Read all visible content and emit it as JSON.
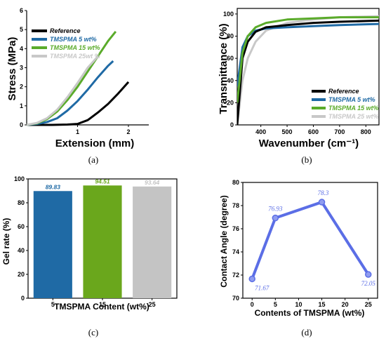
{
  "chart_data": [
    {
      "panel": "(a)",
      "type": "line",
      "xlabel": "Extension (mm)",
      "ylabel": "Stress (MPa)",
      "xlim": [
        0,
        2.4
      ],
      "ylim": [
        0,
        6
      ],
      "xticks": [
        1,
        2
      ],
      "yticks": [
        0,
        1,
        2,
        3,
        4,
        5,
        6
      ],
      "legend_position": "top-left",
      "series": [
        {
          "name": "Reference",
          "color": "#000000",
          "x": [
            0,
            0.5,
            0.8,
            1.0,
            1.2,
            1.4,
            1.6,
            1.8,
            2.0
          ],
          "y": [
            0,
            0,
            0.02,
            0.05,
            0.25,
            0.65,
            1.1,
            1.65,
            2.25
          ]
        },
        {
          "name": "TMSPMA 5 wt%",
          "color": "#1f6aa5",
          "x": [
            0,
            0.2,
            0.4,
            0.6,
            0.8,
            1.0,
            1.2,
            1.4,
            1.6,
            1.7
          ],
          "y": [
            0,
            0.05,
            0.15,
            0.35,
            0.75,
            1.25,
            1.85,
            2.5,
            3.1,
            3.35
          ]
        },
        {
          "name": "TMSPMA 15 wt%",
          "color": "#5aab2a",
          "x": [
            0,
            0.2,
            0.4,
            0.6,
            0.8,
            1.0,
            1.2,
            1.4,
            1.6,
            1.75
          ],
          "y": [
            0,
            0.08,
            0.3,
            0.7,
            1.3,
            2.0,
            2.8,
            3.6,
            4.4,
            4.9
          ]
        },
        {
          "name": "TMSPMA 25wt %",
          "color": "#c8c8c8",
          "x": [
            0,
            0.2,
            0.4,
            0.6,
            0.8,
            1.0,
            1.2,
            1.4
          ],
          "y": [
            0,
            0.1,
            0.35,
            0.8,
            1.45,
            2.2,
            3.0,
            3.6
          ]
        }
      ]
    },
    {
      "panel": "(b)",
      "type": "line",
      "xlabel": "Wavenumber (cm⁻¹)",
      "ylabel": "Transmittance (%)",
      "xlim": [
        310,
        850
      ],
      "ylim": [
        0,
        105
      ],
      "xticks": [
        400,
        500,
        600,
        700,
        800
      ],
      "yticks": [
        0,
        20,
        40,
        60,
        80,
        100
      ],
      "legend_position": "bottom-right",
      "series": [
        {
          "name": "Reference",
          "color": "#000000",
          "x": [
            310,
            330,
            350,
            380,
            420,
            500,
            600,
            700,
            850
          ],
          "y": [
            0,
            60,
            75,
            84,
            88,
            90,
            92,
            93,
            94
          ]
        },
        {
          "name": "TMSPMA 5 wt%",
          "color": "#1f6aa5",
          "x": [
            310,
            330,
            350,
            380,
            420,
            500,
            600,
            700,
            850
          ],
          "y": [
            35,
            70,
            80,
            85,
            87,
            88,
            89,
            90,
            91
          ]
        },
        {
          "name": "TMSPMA 15 wt%",
          "color": "#5aab2a",
          "x": [
            310,
            330,
            350,
            380,
            420,
            500,
            600,
            700,
            850
          ],
          "y": [
            20,
            65,
            80,
            88,
            92,
            95,
            96,
            97,
            97
          ]
        },
        {
          "name": "TMSPMA 25 wt%",
          "color": "#c8c8c8",
          "x": [
            310,
            330,
            350,
            380,
            420,
            500,
            600,
            700,
            850
          ],
          "y": [
            0,
            40,
            60,
            75,
            85,
            92,
            95,
            97,
            98
          ]
        }
      ]
    },
    {
      "panel": "(c)",
      "type": "bar",
      "xlabel": "TMSPMA Content (wt%)",
      "ylabel": "Gel rate (%)",
      "ylim": [
        0,
        100
      ],
      "yticks": [
        0,
        20,
        40,
        60,
        80,
        100
      ],
      "categories": [
        "5",
        "15",
        "25"
      ],
      "values": [
        89.83,
        94.51,
        93.64
      ],
      "value_labels": [
        "89.83",
        "94.51",
        "93.64"
      ],
      "colors": [
        "#1f6aa5",
        "#6aa71c",
        "#c4c4c4"
      ]
    },
    {
      "panel": "(d)",
      "type": "line",
      "xlabel": "Contents of TMSPMA (wt%)",
      "ylabel": "Contact Angle (degree)",
      "xlim": [
        -2,
        27
      ],
      "ylim": [
        70,
        80
      ],
      "xticks": [
        0,
        5,
        10,
        15,
        20,
        25
      ],
      "yticks": [
        70,
        72,
        74,
        76,
        78,
        80
      ],
      "color": "#5b6ee6",
      "x": [
        0,
        5,
        15,
        25
      ],
      "y": [
        71.67,
        76.93,
        78.3,
        72.05
      ],
      "point_labels": [
        "71.67",
        "76.93",
        "78.3",
        "72.05"
      ]
    }
  ]
}
